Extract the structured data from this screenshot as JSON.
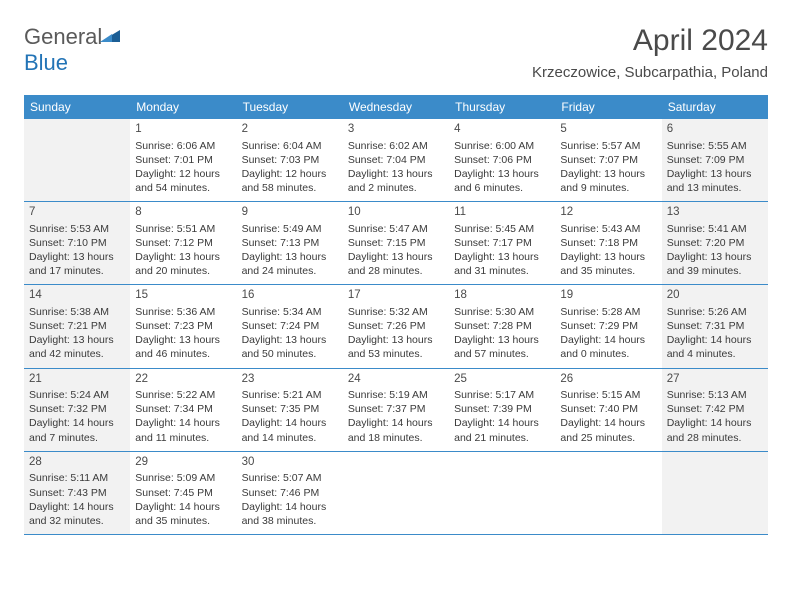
{
  "brand": {
    "name_gray": "General",
    "name_blue": "Blue"
  },
  "title": "April 2024",
  "location": "Krzeczowice, Subcarpathia, Poland",
  "colors": {
    "header_bg": "#3b8bc9",
    "header_text": "#ffffff",
    "border": "#3b8bc9",
    "shaded_bg": "#f2f2f2",
    "text": "#3a3a3a",
    "title_text": "#4a4a4a"
  },
  "day_names": [
    "Sunday",
    "Monday",
    "Tuesday",
    "Wednesday",
    "Thursday",
    "Friday",
    "Saturday"
  ],
  "shaded_indices": [
    0,
    6
  ],
  "weeks": [
    [
      {
        "num": "",
        "sunrise": "",
        "sunset": "",
        "daylight": ""
      },
      {
        "num": "1",
        "sunrise": "Sunrise: 6:06 AM",
        "sunset": "Sunset: 7:01 PM",
        "daylight": "Daylight: 12 hours and 54 minutes."
      },
      {
        "num": "2",
        "sunrise": "Sunrise: 6:04 AM",
        "sunset": "Sunset: 7:03 PM",
        "daylight": "Daylight: 12 hours and 58 minutes."
      },
      {
        "num": "3",
        "sunrise": "Sunrise: 6:02 AM",
        "sunset": "Sunset: 7:04 PM",
        "daylight": "Daylight: 13 hours and 2 minutes."
      },
      {
        "num": "4",
        "sunrise": "Sunrise: 6:00 AM",
        "sunset": "Sunset: 7:06 PM",
        "daylight": "Daylight: 13 hours and 6 minutes."
      },
      {
        "num": "5",
        "sunrise": "Sunrise: 5:57 AM",
        "sunset": "Sunset: 7:07 PM",
        "daylight": "Daylight: 13 hours and 9 minutes."
      },
      {
        "num": "6",
        "sunrise": "Sunrise: 5:55 AM",
        "sunset": "Sunset: 7:09 PM",
        "daylight": "Daylight: 13 hours and 13 minutes."
      }
    ],
    [
      {
        "num": "7",
        "sunrise": "Sunrise: 5:53 AM",
        "sunset": "Sunset: 7:10 PM",
        "daylight": "Daylight: 13 hours and 17 minutes."
      },
      {
        "num": "8",
        "sunrise": "Sunrise: 5:51 AM",
        "sunset": "Sunset: 7:12 PM",
        "daylight": "Daylight: 13 hours and 20 minutes."
      },
      {
        "num": "9",
        "sunrise": "Sunrise: 5:49 AM",
        "sunset": "Sunset: 7:13 PM",
        "daylight": "Daylight: 13 hours and 24 minutes."
      },
      {
        "num": "10",
        "sunrise": "Sunrise: 5:47 AM",
        "sunset": "Sunset: 7:15 PM",
        "daylight": "Daylight: 13 hours and 28 minutes."
      },
      {
        "num": "11",
        "sunrise": "Sunrise: 5:45 AM",
        "sunset": "Sunset: 7:17 PM",
        "daylight": "Daylight: 13 hours and 31 minutes."
      },
      {
        "num": "12",
        "sunrise": "Sunrise: 5:43 AM",
        "sunset": "Sunset: 7:18 PM",
        "daylight": "Daylight: 13 hours and 35 minutes."
      },
      {
        "num": "13",
        "sunrise": "Sunrise: 5:41 AM",
        "sunset": "Sunset: 7:20 PM",
        "daylight": "Daylight: 13 hours and 39 minutes."
      }
    ],
    [
      {
        "num": "14",
        "sunrise": "Sunrise: 5:38 AM",
        "sunset": "Sunset: 7:21 PM",
        "daylight": "Daylight: 13 hours and 42 minutes."
      },
      {
        "num": "15",
        "sunrise": "Sunrise: 5:36 AM",
        "sunset": "Sunset: 7:23 PM",
        "daylight": "Daylight: 13 hours and 46 minutes."
      },
      {
        "num": "16",
        "sunrise": "Sunrise: 5:34 AM",
        "sunset": "Sunset: 7:24 PM",
        "daylight": "Daylight: 13 hours and 50 minutes."
      },
      {
        "num": "17",
        "sunrise": "Sunrise: 5:32 AM",
        "sunset": "Sunset: 7:26 PM",
        "daylight": "Daylight: 13 hours and 53 minutes."
      },
      {
        "num": "18",
        "sunrise": "Sunrise: 5:30 AM",
        "sunset": "Sunset: 7:28 PM",
        "daylight": "Daylight: 13 hours and 57 minutes."
      },
      {
        "num": "19",
        "sunrise": "Sunrise: 5:28 AM",
        "sunset": "Sunset: 7:29 PM",
        "daylight": "Daylight: 14 hours and 0 minutes."
      },
      {
        "num": "20",
        "sunrise": "Sunrise: 5:26 AM",
        "sunset": "Sunset: 7:31 PM",
        "daylight": "Daylight: 14 hours and 4 minutes."
      }
    ],
    [
      {
        "num": "21",
        "sunrise": "Sunrise: 5:24 AM",
        "sunset": "Sunset: 7:32 PM",
        "daylight": "Daylight: 14 hours and 7 minutes."
      },
      {
        "num": "22",
        "sunrise": "Sunrise: 5:22 AM",
        "sunset": "Sunset: 7:34 PM",
        "daylight": "Daylight: 14 hours and 11 minutes."
      },
      {
        "num": "23",
        "sunrise": "Sunrise: 5:21 AM",
        "sunset": "Sunset: 7:35 PM",
        "daylight": "Daylight: 14 hours and 14 minutes."
      },
      {
        "num": "24",
        "sunrise": "Sunrise: 5:19 AM",
        "sunset": "Sunset: 7:37 PM",
        "daylight": "Daylight: 14 hours and 18 minutes."
      },
      {
        "num": "25",
        "sunrise": "Sunrise: 5:17 AM",
        "sunset": "Sunset: 7:39 PM",
        "daylight": "Daylight: 14 hours and 21 minutes."
      },
      {
        "num": "26",
        "sunrise": "Sunrise: 5:15 AM",
        "sunset": "Sunset: 7:40 PM",
        "daylight": "Daylight: 14 hours and 25 minutes."
      },
      {
        "num": "27",
        "sunrise": "Sunrise: 5:13 AM",
        "sunset": "Sunset: 7:42 PM",
        "daylight": "Daylight: 14 hours and 28 minutes."
      }
    ],
    [
      {
        "num": "28",
        "sunrise": "Sunrise: 5:11 AM",
        "sunset": "Sunset: 7:43 PM",
        "daylight": "Daylight: 14 hours and 32 minutes."
      },
      {
        "num": "29",
        "sunrise": "Sunrise: 5:09 AM",
        "sunset": "Sunset: 7:45 PM",
        "daylight": "Daylight: 14 hours and 35 minutes."
      },
      {
        "num": "30",
        "sunrise": "Sunrise: 5:07 AM",
        "sunset": "Sunset: 7:46 PM",
        "daylight": "Daylight: 14 hours and 38 minutes."
      },
      {
        "num": "",
        "sunrise": "",
        "sunset": "",
        "daylight": ""
      },
      {
        "num": "",
        "sunrise": "",
        "sunset": "",
        "daylight": ""
      },
      {
        "num": "",
        "sunrise": "",
        "sunset": "",
        "daylight": ""
      },
      {
        "num": "",
        "sunrise": "",
        "sunset": "",
        "daylight": ""
      }
    ]
  ]
}
